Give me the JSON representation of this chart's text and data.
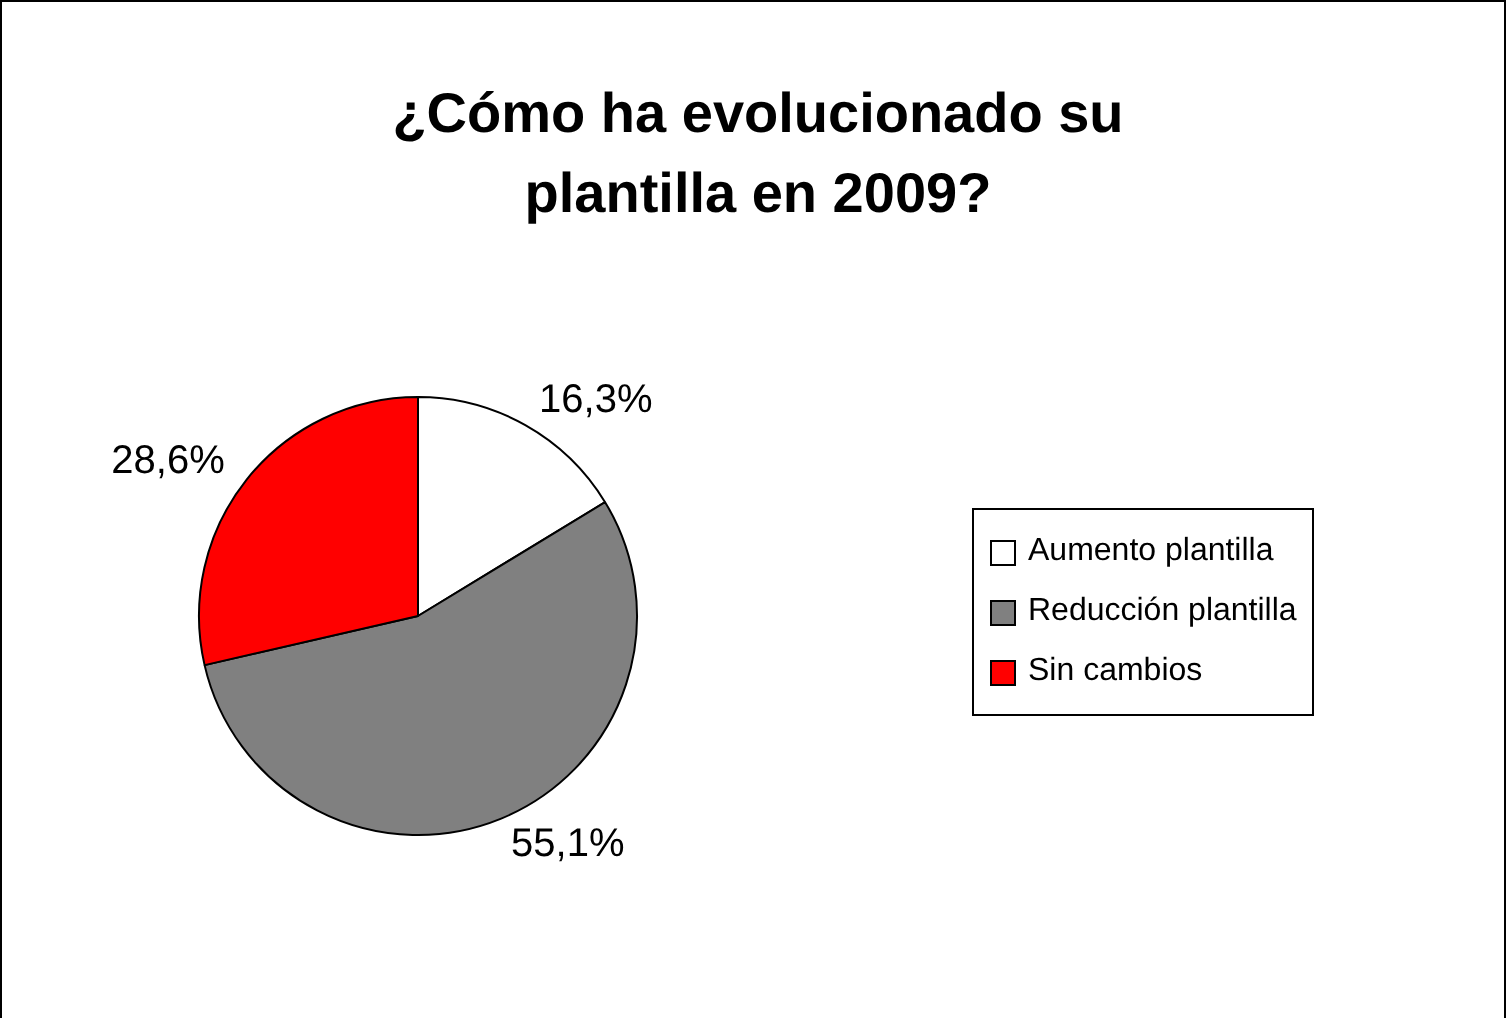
{
  "chart_data": {
    "type": "pie",
    "title": "¿Cómo ha evolucionado su plantilla en 2009?",
    "categories": [
      "Aumento plantilla",
      "Reducción plantilla",
      "Sin cambios"
    ],
    "values": [
      16.3,
      55.1,
      28.6
    ],
    "colors": [
      "#ffffff",
      "#808080",
      "#ff0000"
    ],
    "value_labels": [
      "16,3%",
      "55,1%",
      "28,6%"
    ],
    "legend": "right"
  }
}
